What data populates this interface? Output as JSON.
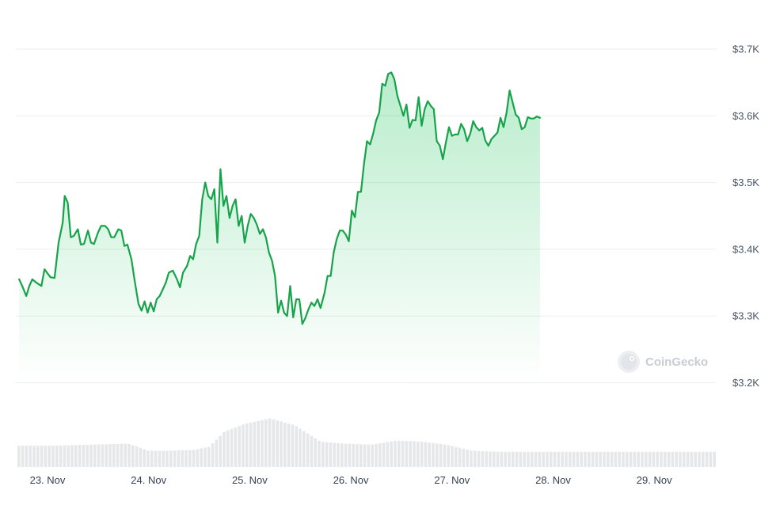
{
  "chart_data": {
    "type": "area",
    "ylim": [
      3200,
      3700
    ],
    "yticks": [
      {
        "value": 3700,
        "label": "$3.7K"
      },
      {
        "value": 3600,
        "label": "$3.6K"
      },
      {
        "value": 3500,
        "label": "$3.5K"
      },
      {
        "value": 3400,
        "label": "$3.4K"
      },
      {
        "value": 3300,
        "label": "$3.3K"
      },
      {
        "value": 3200,
        "label": "$3.2K"
      }
    ],
    "xticks": [
      "23. Nov",
      "24. Nov",
      "25. Nov",
      "26. Nov",
      "27. Nov",
      "28. Nov",
      "29. Nov"
    ],
    "x_range_days": [
      -0.28,
      6.75
    ],
    "grid": true,
    "line_color": "#16a34a",
    "fill_color": "#22c55e",
    "volume_color": "#e5e7eb",
    "price_points": [
      [
        -0.28,
        3355
      ],
      [
        -0.25,
        3345
      ],
      [
        -0.21,
        3330
      ],
      [
        -0.18,
        3345
      ],
      [
        -0.15,
        3355
      ],
      [
        -0.11,
        3350
      ],
      [
        -0.06,
        3345
      ],
      [
        -0.03,
        3370
      ],
      [
        0.03,
        3358
      ],
      [
        0.07,
        3357
      ],
      [
        0.11,
        3410
      ],
      [
        0.15,
        3440
      ],
      [
        0.17,
        3480
      ],
      [
        0.2,
        3470
      ],
      [
        0.23,
        3418
      ],
      [
        0.26,
        3420
      ],
      [
        0.3,
        3430
      ],
      [
        0.33,
        3407
      ],
      [
        0.36,
        3408
      ],
      [
        0.4,
        3428
      ],
      [
        0.43,
        3410
      ],
      [
        0.46,
        3408
      ],
      [
        0.5,
        3425
      ],
      [
        0.53,
        3435
      ],
      [
        0.57,
        3435
      ],
      [
        0.6,
        3430
      ],
      [
        0.63,
        3418
      ],
      [
        0.66,
        3418
      ],
      [
        0.7,
        3430
      ],
      [
        0.73,
        3428
      ],
      [
        0.76,
        3405
      ],
      [
        0.79,
        3407
      ],
      [
        0.83,
        3385
      ],
      [
        0.86,
        3355
      ],
      [
        0.9,
        3318
      ],
      [
        0.93,
        3308
      ],
      [
        0.96,
        3322
      ],
      [
        0.99,
        3305
      ],
      [
        1.02,
        3320
      ],
      [
        1.05,
        3307
      ],
      [
        1.08,
        3325
      ],
      [
        1.11,
        3330
      ],
      [
        1.14,
        3340
      ],
      [
        1.17,
        3350
      ],
      [
        1.2,
        3365
      ],
      [
        1.24,
        3368
      ],
      [
        1.28,
        3355
      ],
      [
        1.31,
        3343
      ],
      [
        1.34,
        3365
      ],
      [
        1.38,
        3375
      ],
      [
        1.41,
        3390
      ],
      [
        1.44,
        3385
      ],
      [
        1.47,
        3408
      ],
      [
        1.5,
        3420
      ],
      [
        1.53,
        3475
      ],
      [
        1.56,
        3500
      ],
      [
        1.59,
        3480
      ],
      [
        1.62,
        3475
      ],
      [
        1.65,
        3490
      ],
      [
        1.68,
        3410
      ],
      [
        1.71,
        3520
      ],
      [
        1.74,
        3465
      ],
      [
        1.77,
        3480
      ],
      [
        1.8,
        3447
      ],
      [
        1.83,
        3465
      ],
      [
        1.86,
        3475
      ],
      [
        1.89,
        3435
      ],
      [
        1.92,
        3450
      ],
      [
        1.95,
        3410
      ],
      [
        1.98,
        3435
      ],
      [
        2.01,
        3453
      ],
      [
        2.04,
        3447
      ],
      [
        2.07,
        3437
      ],
      [
        2.1,
        3423
      ],
      [
        2.13,
        3430
      ],
      [
        2.16,
        3418
      ],
      [
        2.19,
        3395
      ],
      [
        2.22,
        3383
      ],
      [
        2.25,
        3360
      ],
      [
        2.28,
        3305
      ],
      [
        2.31,
        3323
      ],
      [
        2.34,
        3305
      ],
      [
        2.37,
        3300
      ],
      [
        2.4,
        3345
      ],
      [
        2.43,
        3298
      ],
      [
        2.46,
        3325
      ],
      [
        2.49,
        3325
      ],
      [
        2.52,
        3288
      ],
      [
        2.55,
        3297
      ],
      [
        2.58,
        3310
      ],
      [
        2.61,
        3320
      ],
      [
        2.64,
        3315
      ],
      [
        2.67,
        3325
      ],
      [
        2.7,
        3312
      ],
      [
        2.74,
        3335
      ],
      [
        2.77,
        3360
      ],
      [
        2.8,
        3360
      ],
      [
        2.83,
        3395
      ],
      [
        2.86,
        3415
      ],
      [
        2.89,
        3428
      ],
      [
        2.92,
        3428
      ],
      [
        2.95,
        3422
      ],
      [
        2.98,
        3412
      ],
      [
        3.01,
        3458
      ],
      [
        3.04,
        3448
      ],
      [
        3.07,
        3486
      ],
      [
        3.1,
        3486
      ],
      [
        3.13,
        3528
      ],
      [
        3.16,
        3562
      ],
      [
        3.19,
        3557
      ],
      [
        3.22,
        3573
      ],
      [
        3.25,
        3593
      ],
      [
        3.28,
        3605
      ],
      [
        3.31,
        3648
      ],
      [
        3.34,
        3645
      ],
      [
        3.37,
        3663
      ],
      [
        3.4,
        3665
      ],
      [
        3.43,
        3655
      ],
      [
        3.46,
        3630
      ],
      [
        3.49,
        3615
      ],
      [
        3.52,
        3600
      ],
      [
        3.55,
        3617
      ],
      [
        3.58,
        3582
      ],
      [
        3.61,
        3594
      ],
      [
        3.64,
        3593
      ],
      [
        3.67,
        3628
      ],
      [
        3.7,
        3585
      ],
      [
        3.73,
        3610
      ],
      [
        3.76,
        3622
      ],
      [
        3.79,
        3615
      ],
      [
        3.82,
        3610
      ],
      [
        3.85,
        3562
      ],
      [
        3.88,
        3555
      ],
      [
        3.91,
        3535
      ],
      [
        3.94,
        3560
      ],
      [
        3.97,
        3583
      ],
      [
        4.0,
        3570
      ],
      [
        4.03,
        3572
      ],
      [
        4.06,
        3572
      ],
      [
        4.09,
        3588
      ],
      [
        4.12,
        3580
      ],
      [
        4.15,
        3562
      ],
      [
        4.18,
        3573
      ],
      [
        4.21,
        3592
      ],
      [
        4.24,
        3583
      ],
      [
        4.27,
        3578
      ],
      [
        4.3,
        3582
      ],
      [
        4.33,
        3563
      ],
      [
        4.36,
        3555
      ],
      [
        4.39,
        3565
      ],
      [
        4.42,
        3570
      ],
      [
        4.45,
        3575
      ],
      [
        4.48,
        3597
      ],
      [
        4.51,
        3583
      ],
      [
        4.54,
        3605
      ],
      [
        4.57,
        3638
      ],
      [
        4.6,
        3620
      ],
      [
        4.63,
        3602
      ],
      [
        4.66,
        3597
      ],
      [
        4.69,
        3580
      ],
      [
        4.72,
        3583
      ],
      [
        4.75,
        3598
      ],
      [
        4.78,
        3596
      ],
      [
        4.81,
        3596
      ],
      [
        4.84,
        3599
      ],
      [
        4.87,
        3597
      ]
    ],
    "volume_points": [
      [
        0.0,
        0.42
      ],
      [
        0.4,
        0.44
      ],
      [
        0.8,
        0.46
      ],
      [
        1.0,
        0.32
      ],
      [
        1.2,
        0.32
      ],
      [
        1.45,
        0.34
      ],
      [
        1.6,
        0.4
      ],
      [
        1.75,
        0.7
      ],
      [
        1.95,
        0.85
      ],
      [
        2.2,
        0.96
      ],
      [
        2.45,
        0.82
      ],
      [
        2.7,
        0.5
      ],
      [
        2.95,
        0.46
      ],
      [
        3.2,
        0.44
      ],
      [
        3.45,
        0.52
      ],
      [
        3.7,
        0.5
      ],
      [
        3.95,
        0.44
      ],
      [
        4.2,
        0.32
      ],
      [
        4.5,
        0.3
      ],
      [
        4.87,
        0.3
      ]
    ]
  },
  "watermark": {
    "text": "CoinGecko"
  }
}
